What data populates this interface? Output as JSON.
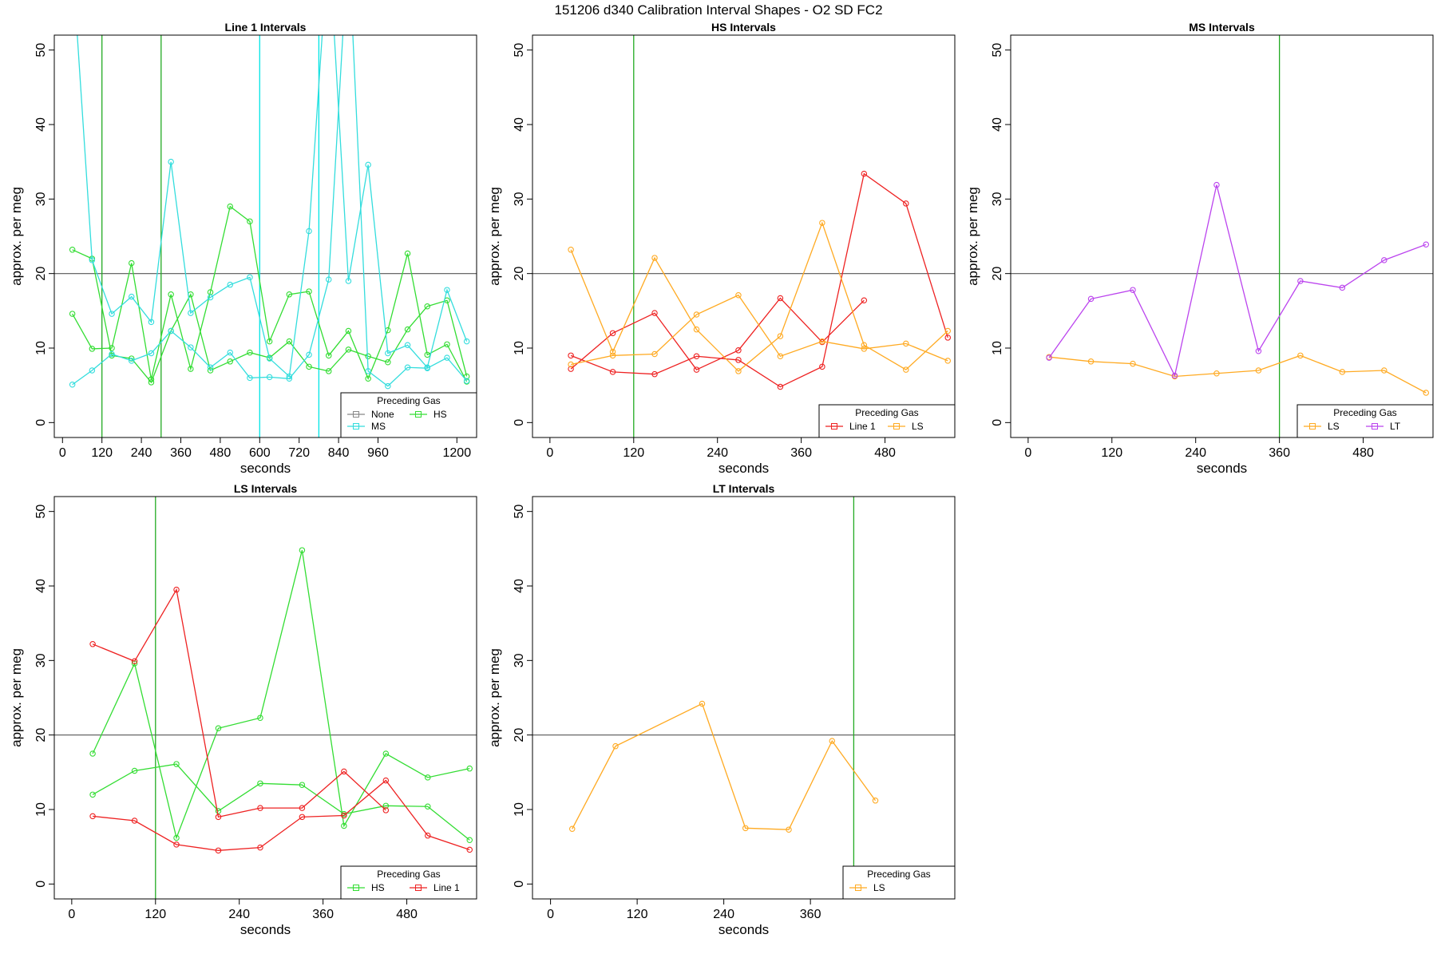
{
  "figure": {
    "title": "151206   d340   Calibration Interval Shapes - O2 SD FC2"
  },
  "chart_data": [
    {
      "type": "line",
      "title": "Line 1 Intervals",
      "xlabel": "seconds",
      "ylabel": "approx. per meg",
      "xlim": [
        -25,
        1260
      ],
      "ylim": [
        -2,
        52
      ],
      "xticks": [
        0,
        120,
        240,
        360,
        480,
        600,
        720,
        840,
        960,
        1200
      ],
      "yticks": [
        0,
        10,
        20,
        30,
        40,
        50
      ],
      "hline": 20,
      "vlines": [
        {
          "x": 120,
          "color": "#22aa22"
        },
        {
          "x": 300,
          "color": "#22aa22"
        },
        {
          "x": 600,
          "color": "#00e5e5"
        },
        {
          "x": 780,
          "color": "#00e5e5"
        }
      ],
      "legend": {
        "title": "Preceding Gas",
        "position": "bottom-right",
        "columns": 2,
        "entries": [
          "None",
          "HS",
          "MS"
        ]
      },
      "series": [
        {
          "name": "None",
          "color": "#888888",
          "lines": []
        },
        {
          "name": "HS",
          "color": "#33dd33",
          "lines": [
            {
              "x": [
                30,
                90,
                150,
                210,
                270,
                330,
                390,
                450,
                510,
                570,
                630,
                690,
                750,
                810,
                870,
                930,
                990,
                1050,
                1110,
                1170,
                1230
              ],
              "y": [
                23.2,
                22.0,
                9.0,
                8.6,
                5.4,
                12.3,
                17.2,
                7.0,
                8.2,
                9.4,
                8.7,
                10.9,
                7.5,
                6.9,
                9.8,
                8.9,
                8.1,
                12.5,
                15.6,
                16.4,
                6.2
              ]
            },
            {
              "x": [
                30,
                90,
                150,
                210,
                270,
                330,
                390,
                450,
                510,
                570,
                630,
                690,
                750,
                810,
                870,
                930,
                990,
                1050,
                1110,
                1170,
                1230
              ],
              "y": [
                14.6,
                9.9,
                10.0,
                21.4,
                5.8,
                17.2,
                7.2,
                17.5,
                29.0,
                27.0,
                10.9,
                17.2,
                17.6,
                9.0,
                12.3,
                5.9,
                12.4,
                22.7,
                9.1,
                10.5,
                5.5
              ]
            }
          ]
        },
        {
          "name": "MS",
          "color": "#33dddd",
          "lines": [
            {
              "x": [
                30,
                90,
                150,
                210,
                270,
                330,
                390,
                450,
                510,
                570,
                630,
                690,
                750,
                810,
                870,
                930,
                990,
                1050,
                1110,
                1170,
                1230
              ],
              "y": [
                62.0,
                21.8,
                14.6,
                16.9,
                13.5,
                35.0,
                14.7,
                16.8,
                18.5,
                19.5,
                8.6,
                6.2,
                25.7,
                65.0,
                19.0,
                34.6,
                9.3,
                10.4,
                7.4,
                17.8,
                10.9
              ]
            },
            {
              "x": [
                30,
                90,
                150,
                210,
                270,
                330,
                390,
                450,
                510,
                570,
                630,
                690,
                750,
                810,
                870,
                930,
                990,
                1050,
                1110,
                1170,
                1230
              ],
              "y": [
                5.1,
                7.0,
                9.2,
                8.3,
                9.3,
                12.3,
                10.1,
                7.4,
                9.4,
                6.0,
                6.1,
                5.9,
                9.1,
                19.2,
                65.0,
                6.9,
                4.9,
                7.4,
                7.3,
                8.7,
                5.6
              ]
            }
          ]
        }
      ]
    },
    {
      "type": "line",
      "title": "HS Intervals",
      "xlabel": "seconds",
      "ylabel": "approx. per meg",
      "xlim": [
        -25,
        580
      ],
      "ylim": [
        -2,
        52
      ],
      "xticks": [
        0,
        120,
        240,
        360,
        480
      ],
      "yticks": [
        0,
        10,
        20,
        30,
        40,
        50
      ],
      "hline": 20,
      "vlines": [
        {
          "x": 120,
          "color": "#22aa22"
        }
      ],
      "legend": {
        "title": "Preceding Gas",
        "position": "bottom-right",
        "columns": 2,
        "entries": [
          "Line 1",
          "LS"
        ]
      },
      "series": [
        {
          "name": "Line 1",
          "color": "#ee2222",
          "lines": [
            {
              "x": [
                30,
                90,
                150,
                210,
                270,
                330,
                390,
                450
              ],
              "y": [
                7.2,
                12.0,
                14.7,
                7.1,
                9.7,
                16.7,
                10.8,
                16.4
              ]
            },
            {
              "x": [
                30,
                90,
                150,
                210,
                270,
                330,
                390,
                450,
                510,
                570
              ],
              "y": [
                9.0,
                6.8,
                6.5,
                8.9,
                8.4,
                4.8,
                7.5,
                33.4,
                29.4,
                11.4
              ]
            }
          ]
        },
        {
          "name": "LS",
          "color": "#ffaa22",
          "lines": [
            {
              "x": [
                30,
                90,
                150,
                210,
                270,
                330,
                390,
                450,
                510,
                570
              ],
              "y": [
                23.2,
                9.5,
                22.1,
                12.5,
                6.9,
                11.6,
                26.8,
                10.4,
                7.1,
                12.3
              ]
            },
            {
              "x": [
                30,
                90,
                150,
                210,
                270,
                330,
                390,
                450,
                510,
                570
              ],
              "y": [
                7.8,
                9.0,
                9.2,
                14.5,
                17.1,
                8.9,
                10.9,
                9.9,
                10.6,
                8.3
              ]
            }
          ]
        }
      ]
    },
    {
      "type": "line",
      "title": "MS Intervals",
      "xlabel": "seconds",
      "ylabel": "approx. per meg",
      "xlim": [
        -25,
        580
      ],
      "ylim": [
        -2,
        52
      ],
      "xticks": [
        0,
        120,
        240,
        360,
        480
      ],
      "yticks": [
        0,
        10,
        20,
        30,
        40,
        50
      ],
      "hline": 20,
      "vlines": [
        {
          "x": 360,
          "color": "#22aa22"
        }
      ],
      "legend": {
        "title": "Preceding Gas",
        "position": "bottom-right",
        "columns": 2,
        "entries": [
          "LS",
          "LT"
        ]
      },
      "series": [
        {
          "name": "LS",
          "color": "#ffaa22",
          "lines": [
            {
              "x": [
                30,
                90,
                150,
                210,
                270,
                330,
                390,
                450,
                510,
                570
              ],
              "y": [
                8.8,
                8.2,
                7.9,
                6.2,
                6.6,
                7.0,
                9.0,
                6.8,
                7.0,
                4.0
              ]
            }
          ]
        },
        {
          "name": "LT",
          "color": "#bb44ee",
          "lines": [
            {
              "x": [
                30,
                90,
                150,
                210,
                270,
                330,
                390,
                450,
                510,
                570
              ],
              "y": [
                8.7,
                16.6,
                17.8,
                6.3,
                31.9,
                9.6,
                19.0,
                18.1,
                21.8,
                23.9
              ]
            }
          ]
        }
      ]
    },
    {
      "type": "line",
      "title": "LS Intervals",
      "xlabel": "seconds",
      "ylabel": "approx. per meg",
      "xlim": [
        -25,
        580
      ],
      "ylim": [
        -2,
        52
      ],
      "xticks": [
        0,
        120,
        240,
        360,
        480
      ],
      "yticks": [
        0,
        10,
        20,
        30,
        40,
        50
      ],
      "hline": 20,
      "vlines": [
        {
          "x": 120,
          "color": "#22aa22"
        }
      ],
      "legend": {
        "title": "Preceding Gas",
        "position": "bottom-right",
        "columns": 2,
        "entries": [
          "HS",
          "Line 1"
        ]
      },
      "series": [
        {
          "name": "HS",
          "color": "#33dd33",
          "lines": [
            {
              "x": [
                30,
                90,
                150,
                210,
                270,
                330,
                390,
                450,
                510,
                570
              ],
              "y": [
                17.5,
                29.6,
                6.2,
                20.9,
                22.3,
                44.8,
                7.8,
                17.5,
                14.3,
                15.5
              ]
            },
            {
              "x": [
                30,
                90,
                150,
                210,
                270,
                330,
                390,
                450,
                510,
                570
              ],
              "y": [
                12.0,
                15.2,
                16.1,
                9.8,
                13.5,
                13.3,
                9.4,
                10.5,
                10.4,
                5.9
              ]
            }
          ]
        },
        {
          "name": "Line 1",
          "color": "#ee2222",
          "lines": [
            {
              "x": [
                30,
                90,
                150,
                210,
                270,
                330,
                390,
                450
              ],
              "y": [
                32.2,
                29.9,
                39.5,
                9.0,
                10.2,
                10.2,
                15.1,
                9.9
              ]
            },
            {
              "x": [
                30,
                90,
                150,
                210,
                270,
                330,
                390,
                450,
                510,
                570
              ],
              "y": [
                9.1,
                8.5,
                5.3,
                4.5,
                4.9,
                9.0,
                9.2,
                13.9,
                6.5,
                4.6
              ]
            }
          ]
        }
      ]
    },
    {
      "type": "line",
      "title": "LT Intervals",
      "xlabel": "seconds",
      "ylabel": "approx. per meg",
      "xlim": [
        -25,
        560
      ],
      "ylim": [
        -2,
        52
      ],
      "xticks": [
        0,
        120,
        240,
        360
      ],
      "yticks": [
        0,
        10,
        20,
        30,
        40,
        50
      ],
      "hline": 20,
      "vlines": [
        {
          "x": 420,
          "color": "#22aa22"
        }
      ],
      "legend": {
        "title": "Preceding Gas",
        "position": "bottom-right",
        "columns": 1,
        "entries": [
          "LS"
        ]
      },
      "series": [
        {
          "name": "LS",
          "color": "#ffaa22",
          "lines": [
            {
              "x": [
                30,
                90,
                210,
                270,
                330,
                390,
                450
              ],
              "y": [
                7.4,
                18.5,
                24.2,
                7.5,
                7.3,
                19.2,
                11.2
              ]
            }
          ]
        }
      ]
    }
  ]
}
